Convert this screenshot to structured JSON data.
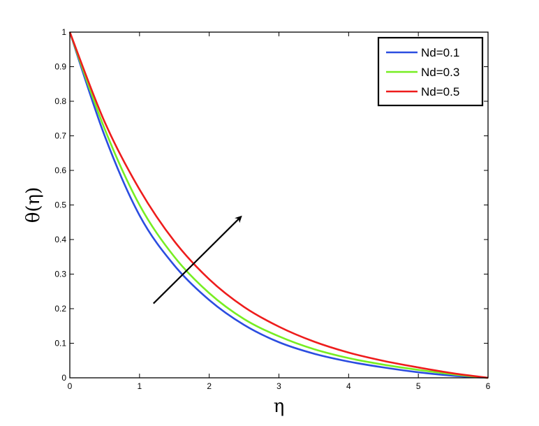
{
  "chart_data": {
    "type": "line",
    "title": "",
    "xlabel": "η",
    "ylabel": "θ(η)",
    "xlim": [
      0,
      6
    ],
    "ylim": [
      0,
      1
    ],
    "x_ticks": [
      "0",
      "1",
      "2",
      "3",
      "4",
      "5",
      "6"
    ],
    "y_ticks": [
      "0",
      "0.1",
      "0.2",
      "0.3",
      "0.4",
      "0.5",
      "0.6",
      "0.7",
      "0.8",
      "0.9",
      "1"
    ],
    "grid": false,
    "legend_position": "top-right",
    "x": [
      0,
      0.5,
      1,
      1.5,
      2,
      2.5,
      3,
      3.5,
      4,
      4.5,
      5,
      5.5,
      6
    ],
    "series": [
      {
        "name": "Nd=0.1",
        "color": "#2b4de0",
        "values": [
          1.0,
          0.7,
          0.47,
          0.325,
          0.225,
          0.153,
          0.103,
          0.07,
          0.047,
          0.03,
          0.016,
          0.006,
          0.0
        ]
      },
      {
        "name": "Nd=0.3",
        "color": "#77ee22",
        "values": [
          1.0,
          0.72,
          0.5,
          0.35,
          0.245,
          0.17,
          0.12,
          0.083,
          0.057,
          0.038,
          0.023,
          0.01,
          0.0
        ]
      },
      {
        "name": "Nd=0.5",
        "color": "#ee1c1c",
        "values": [
          1.0,
          0.74,
          0.545,
          0.395,
          0.285,
          0.205,
          0.148,
          0.105,
          0.073,
          0.049,
          0.03,
          0.013,
          0.0
        ]
      }
    ],
    "annotations": [
      {
        "type": "arrow",
        "from": [
          1.2,
          0.215
        ],
        "to": [
          2.45,
          0.465
        ],
        "color": "#000000"
      }
    ]
  }
}
